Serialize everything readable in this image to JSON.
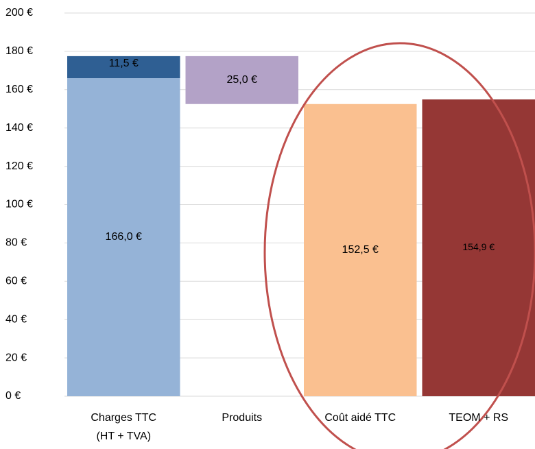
{
  "chart_data": {
    "type": "waterfall",
    "categories": [
      [
        "Charges TTC",
        "(HT + TVA)"
      ],
      [
        "Produits"
      ],
      [
        "Coût aidé TTC"
      ],
      [
        "TEOM + RS"
      ]
    ],
    "measures": [
      "absolute",
      "decrease",
      "absolute",
      "absolute"
    ],
    "series": [
      {
        "color": "#95b3d7",
        "values": [
          166.0,
          null,
          null,
          null
        ],
        "value_labels": [
          "166,0 €",
          null,
          null,
          null
        ]
      },
      {
        "color": "#2f5f93",
        "values": [
          11.5,
          null,
          null,
          null
        ],
        "value_labels": [
          "11,5 €",
          null,
          null,
          null
        ]
      },
      {
        "color": "#b3a2c7",
        "values": [
          null,
          25.0,
          null,
          null
        ],
        "value_labels": [
          null,
          "25,0 €",
          null,
          null
        ]
      },
      {
        "color": "#fac090",
        "values": [
          null,
          null,
          152.5,
          null
        ],
        "value_labels": [
          null,
          null,
          "152,5 €",
          null
        ]
      },
      {
        "color": "#953735",
        "values": [
          null,
          null,
          null,
          154.9
        ],
        "value_labels": [
          null,
          null,
          null,
          "154,9 €"
        ]
      }
    ],
    "ylim": [
      0,
      200
    ],
    "yticks": [
      {
        "value": 0,
        "label": "0 €"
      },
      {
        "value": 20,
        "label": "20 €"
      },
      {
        "value": 40,
        "label": "40 €"
      },
      {
        "value": 60,
        "label": "60 €"
      },
      {
        "value": 80,
        "label": "80 €"
      },
      {
        "value": 100,
        "label": "100 €"
      },
      {
        "value": 120,
        "label": "120 €"
      },
      {
        "value": 140,
        "label": "140 €"
      },
      {
        "value": 160,
        "label": "160 €"
      },
      {
        "value": 180,
        "label": "180 €"
      },
      {
        "value": 200,
        "label": "200 €"
      }
    ],
    "grid": true
  }
}
